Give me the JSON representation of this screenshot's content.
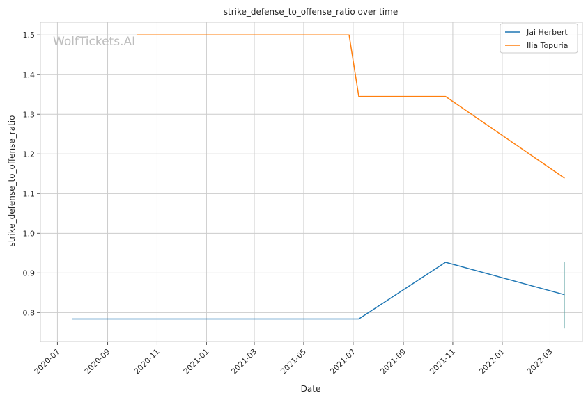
{
  "chart_data": {
    "type": "line",
    "title": "strike_defense_to_offense_ratio over time",
    "xlabel": "Date",
    "ylabel": "strike_defense_to_offense_ratio",
    "watermark": "WolfTickets.AI",
    "xlim": [
      "2020-06-10",
      "2022-04-10"
    ],
    "ylim": [
      0.727,
      1.532
    ],
    "x_ticks": [
      "2020-07-01",
      "2020-09-01",
      "2020-11-01",
      "2021-01-01",
      "2021-03-01",
      "2021-05-01",
      "2021-07-01",
      "2021-09-01",
      "2021-11-01",
      "2022-01-01",
      "2022-03-01"
    ],
    "x_tick_labels": [
      "2020-07",
      "2020-09",
      "2020-11",
      "2021-01",
      "2021-03",
      "2021-05",
      "2021-07",
      "2021-09",
      "2021-11",
      "2022-01",
      "2022-03"
    ],
    "y_ticks": [
      0.8,
      0.9,
      1.0,
      1.1,
      1.2,
      1.3,
      1.4,
      1.5
    ],
    "y_tick_labels": [
      "0.8",
      "0.9",
      "1.0",
      "1.1",
      "1.2",
      "1.3",
      "1.4",
      "1.5"
    ],
    "grid": true,
    "legend_position": "top-right",
    "series": [
      {
        "name": "Jai Herbert",
        "color": "#1f77b4",
        "x": [
          "2020-07-19",
          "2021-07-08",
          "2021-10-23",
          "2022-03-19"
        ],
        "y": [
          0.784,
          0.784,
          0.927,
          0.845
        ]
      },
      {
        "name": "Ilia Topuria",
        "color": "#ff7f0e",
        "x": [
          "2020-10-07",
          "2021-06-26",
          "2021-07-08",
          "2021-10-23",
          "2022-03-19"
        ],
        "y": [
          1.5,
          1.5,
          1.345,
          1.345,
          1.139
        ]
      }
    ],
    "annotation": {
      "type": "vertical-range",
      "x": "2022-03-19",
      "y_range": [
        0.76,
        0.927
      ],
      "color": "#5aa0a0"
    }
  }
}
